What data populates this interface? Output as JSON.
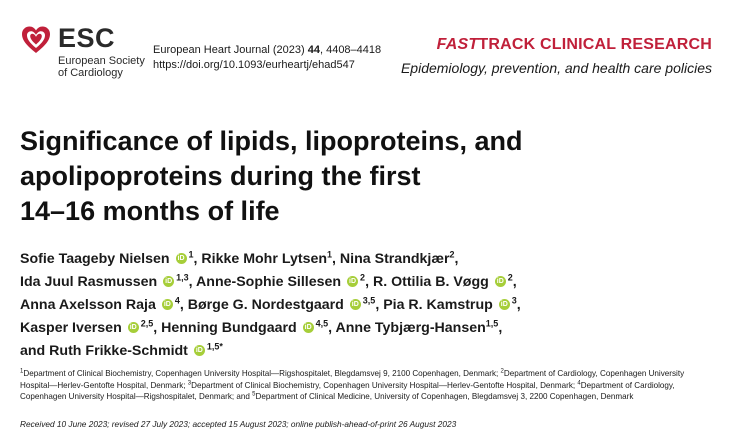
{
  "logo": {
    "text": "ESC",
    "subtitle_line1": "European Society",
    "subtitle_line2": "of Cardiology",
    "color": "#c0203a"
  },
  "journal": {
    "citation_prefix": "European Heart Journal (2023) ",
    "volume": "44",
    "pages": ", 4408–4418",
    "doi": "https://doi.org/10.1093/eurheartj/ehad547"
  },
  "track": {
    "label_italic": "FAST",
    "label_rest": "TRACK CLINICAL RESEARCH",
    "subject": "Epidemiology, prevention, and health care policies",
    "color": "#c0203a"
  },
  "article": {
    "title_lines": [
      "Significance of lipids, lipoproteins, and",
      "apolipoproteins during the first",
      "14–16 months of life"
    ]
  },
  "authors": {
    "orcid_icon_text": "iD",
    "line1": {
      "a1": "Sofie Taageby Nielsen",
      "a1_sup": "1",
      "a2": ", Rikke Mohr Lytsen",
      "a2_sup": "1",
      "a3": ", Nina Strandkjær",
      "a3_sup": "2",
      "tail": ","
    },
    "line2": {
      "a1": "Ida Juul Rasmussen",
      "a1_sup": "1,3",
      "a2": ", Anne-Sophie Sillesen",
      "a2_sup": "2",
      "a3": ", R. Ottilia B. Vøgg",
      "a3_sup": "2",
      "tail": ","
    },
    "line3": {
      "a1": "Anna Axelsson Raja",
      "a1_sup": "4",
      "a2": ", Børge G. Nordestgaard",
      "a2_sup": "3,5",
      "a3": ", Pia R. Kamstrup",
      "a3_sup": "3",
      "tail": ","
    },
    "line4": {
      "a1": "Kasper Iversen",
      "a1_sup": "2,5",
      "a2": ", Henning Bundgaard",
      "a2_sup": "4,5",
      "a3": ", Anne Tybjærg-Hansen",
      "a3_sup": "1,5",
      "tail": ","
    },
    "line5": {
      "a1": "and Ruth Frikke-Schmidt",
      "a1_sup": "1,5*"
    }
  },
  "affiliations": {
    "line1_parts": [
      {
        "sup": "1",
        "text": "Department of Clinical Biochemistry, Copenhagen University Hospital—Rigshospitalet, Blegdamsvej 9, 2100 Copenhagen, Denmark; "
      },
      {
        "sup": "2",
        "text": "Department of Cardiology, Copenhagen University"
      }
    ],
    "line2_parts": [
      {
        "sup": "",
        "text": "Hospital—Herlev-Gentofte Hospital, Denmark; "
      },
      {
        "sup": "3",
        "text": "Department of Clinical Biochemistry, Copenhagen University Hospital—Herlev-Gentofte Hospital, Denmark; "
      },
      {
        "sup": "4",
        "text": "Department of Cardiology,"
      }
    ],
    "line3_parts": [
      {
        "sup": "",
        "text": "Copenhagen University Hospital—Rigshospitalet, Denmark; and "
      },
      {
        "sup": "5",
        "text": "Department of Clinical Medicine, University of Copenhagen, Blegdamsvej 3, 2200 Copenhagen, Denmark"
      }
    ]
  },
  "history": {
    "text": "Received 10 June 2023; revised 27 July 2023; accepted 15 August 2023; online publish-ahead-of-print 26 August 2023"
  }
}
